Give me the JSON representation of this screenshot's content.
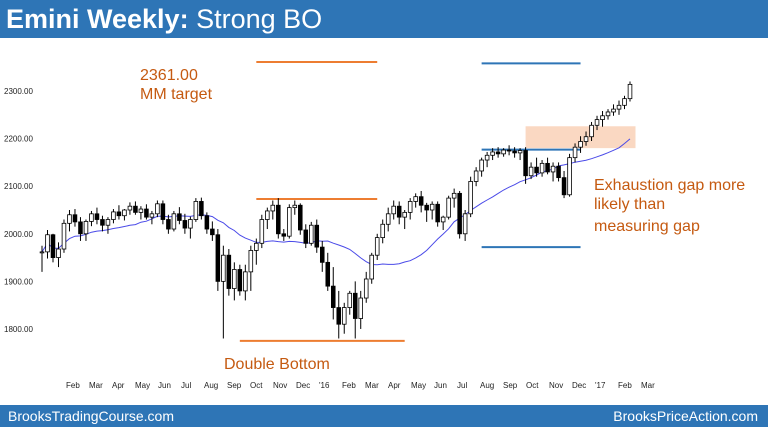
{
  "header": {
    "title_bold": "Emini Weekly:",
    "title_rest": "Strong BO"
  },
  "footer": {
    "left": "BrooksTradingCourse.com",
    "right": "BrooksPriceAction.com"
  },
  "colors": {
    "brand_blue": "#2e75b6",
    "annotation_orange": "#c55a11",
    "level_orange": "#ed7d31",
    "level_blue": "#2e75b6",
    "moving_average": "#4a4ae8",
    "gap_zone": "#f8cbad"
  },
  "chart_data": {
    "type": "candlestick",
    "title": "Emini Weekly: Strong BO",
    "ylim": [
      1760,
      2340
    ],
    "yticks": [
      "1800.00",
      "1900.00",
      "2000.00",
      "2100.00",
      "2200.00",
      "2300.00"
    ],
    "xticks": [
      "Feb",
      "Mar",
      "Apr",
      "May",
      "Jun",
      "Jul",
      "Aug",
      "Sep",
      "Oct",
      "Nov",
      "Dec",
      "'16",
      "Feb",
      "Mar",
      "Apr",
      "May",
      "Jun",
      "Jul",
      "Aug",
      "Sep",
      "Oct",
      "Nov",
      "Dec",
      "'17",
      "Feb",
      "Mar"
    ],
    "annotations": {
      "mm_value": "2361.00",
      "mm_label": "MM target",
      "double_bottom": "Double Bottom",
      "gap_lines": [
        "Exhaustion gap more",
        "likely than",
        "measuring gap"
      ]
    },
    "levels": [
      {
        "name": "mm-target",
        "price": 2361,
        "from": 39,
        "to": 61
      },
      {
        "name": "double-bottom-top",
        "price": 2073,
        "from": 39,
        "to": 61
      },
      {
        "name": "double-bottom-low",
        "price": 1775,
        "from": 36,
        "to": 66
      },
      {
        "name": "blue-upper",
        "price": 2358,
        "from": 80,
        "to": 98
      },
      {
        "name": "blue-middle",
        "price": 2177,
        "from": 80,
        "to": 98
      },
      {
        "name": "blue-lower",
        "price": 1972,
        "from": 80,
        "to": 98
      }
    ],
    "zone": {
      "from": 88,
      "to": 108,
      "low": 2180,
      "high": 2226
    },
    "candles": [
      [
        1962,
        1975,
        1920,
        1962
      ],
      [
        1962,
        2008,
        1948,
        1998
      ],
      [
        1998,
        2000,
        1940,
        1950
      ],
      [
        1950,
        1982,
        1930,
        1968
      ],
      [
        1968,
        2030,
        1960,
        2022
      ],
      [
        2022,
        2050,
        2005,
        2040
      ],
      [
        2040,
        2052,
        2015,
        2025
      ],
      [
        2025,
        2035,
        1985,
        2000
      ],
      [
        2000,
        2030,
        1985,
        2026
      ],
      [
        2026,
        2048,
        2016,
        2042
      ],
      [
        2042,
        2055,
        2020,
        2030
      ],
      [
        2030,
        2038,
        2005,
        2018
      ],
      [
        2018,
        2035,
        2000,
        2030
      ],
      [
        2030,
        2052,
        2022,
        2046
      ],
      [
        2046,
        2060,
        2030,
        2038
      ],
      [
        2038,
        2052,
        2028,
        2050
      ],
      [
        2050,
        2066,
        2040,
        2058
      ],
      [
        2058,
        2068,
        2040,
        2045
      ],
      [
        2045,
        2058,
        2030,
        2052
      ],
      [
        2052,
        2062,
        2030,
        2035
      ],
      [
        2035,
        2048,
        2020,
        2042
      ],
      [
        2042,
        2070,
        2035,
        2063
      ],
      [
        2063,
        2070,
        2020,
        2030
      ],
      [
        2030,
        2040,
        2000,
        2010
      ],
      [
        2010,
        2048,
        2005,
        2042
      ],
      [
        2042,
        2056,
        2020,
        2028
      ],
      [
        2028,
        2042,
        2000,
        2012
      ],
      [
        2012,
        2036,
        1990,
        2030
      ],
      [
        2030,
        2075,
        2025,
        2068
      ],
      [
        2068,
        2076,
        2030,
        2038
      ],
      [
        2038,
        2045,
        2000,
        2010
      ],
      [
        2010,
        2026,
        1985,
        1998
      ],
      [
        1998,
        2010,
        1880,
        1900
      ],
      [
        1900,
        1975,
        1780,
        1955
      ],
      [
        1955,
        1968,
        1870,
        1885
      ],
      [
        1885,
        1940,
        1860,
        1925
      ],
      [
        1925,
        1935,
        1870,
        1880
      ],
      [
        1880,
        1935,
        1860,
        1920
      ],
      [
        1920,
        1975,
        1880,
        1965
      ],
      [
        1965,
        1990,
        1935,
        1980
      ],
      [
        1980,
        2040,
        1970,
        2030
      ],
      [
        2030,
        2055,
        2010,
        2048
      ],
      [
        2048,
        2070,
        2030,
        2060
      ],
      [
        2060,
        2075,
        1990,
        2000
      ],
      [
        2000,
        2010,
        1985,
        1995
      ],
      [
        1995,
        2062,
        1990,
        2055
      ],
      [
        2055,
        2070,
        2040,
        2060
      ],
      [
        2060,
        2064,
        1998,
        2008
      ],
      [
        2008,
        2020,
        1970,
        1980
      ],
      [
        1980,
        2025,
        1975,
        2018
      ],
      [
        2018,
        2030,
        1960,
        1972
      ],
      [
        1972,
        1985,
        1920,
        1940
      ],
      [
        1940,
        1960,
        1880,
        1890
      ],
      [
        1890,
        1930,
        1820,
        1845
      ],
      [
        1845,
        1880,
        1780,
        1810
      ],
      [
        1810,
        1855,
        1790,
        1845
      ],
      [
        1845,
        1880,
        1830,
        1875
      ],
      [
        1875,
        1900,
        1780,
        1822
      ],
      [
        1822,
        1880,
        1800,
        1865
      ],
      [
        1865,
        1920,
        1855,
        1905
      ],
      [
        1905,
        1960,
        1895,
        1955
      ],
      [
        1955,
        2000,
        1945,
        1992
      ],
      [
        1992,
        2030,
        1980,
        2020
      ],
      [
        2020,
        2055,
        2005,
        2042
      ],
      [
        2042,
        2070,
        2030,
        2058
      ],
      [
        2058,
        2068,
        2020,
        2035
      ],
      [
        2035,
        2050,
        2010,
        2045
      ],
      [
        2045,
        2075,
        2030,
        2068
      ],
      [
        2068,
        2085,
        2055,
        2078
      ],
      [
        2078,
        2090,
        2045,
        2060
      ],
      [
        2060,
        2065,
        2025,
        2050
      ],
      [
        2050,
        2068,
        2030,
        2062
      ],
      [
        2062,
        2068,
        2015,
        2025
      ],
      [
        2025,
        2038,
        2008,
        2035
      ],
      [
        2035,
        2080,
        2030,
        2075
      ],
      [
        2075,
        2095,
        2055,
        2085
      ],
      [
        2085,
        2090,
        1990,
        2000
      ],
      [
        2000,
        2050,
        1985,
        2042
      ],
      [
        2042,
        2120,
        2035,
        2110
      ],
      [
        2110,
        2140,
        2100,
        2132
      ],
      [
        2132,
        2160,
        2120,
        2155
      ],
      [
        2155,
        2172,
        2140,
        2165
      ],
      [
        2165,
        2180,
        2155,
        2172
      ],
      [
        2172,
        2182,
        2160,
        2168
      ],
      [
        2168,
        2180,
        2162,
        2176
      ],
      [
        2176,
        2186,
        2165,
        2174
      ],
      [
        2174,
        2182,
        2160,
        2170
      ],
      [
        2170,
        2180,
        2155,
        2175
      ],
      [
        2175,
        2182,
        2105,
        2122
      ],
      [
        2122,
        2150,
        2115,
        2140
      ],
      [
        2140,
        2160,
        2120,
        2128
      ],
      [
        2128,
        2155,
        2120,
        2148
      ],
      [
        2148,
        2160,
        2125,
        2130
      ],
      [
        2130,
        2150,
        2110,
        2142
      ],
      [
        2142,
        2150,
        2110,
        2118
      ],
      [
        2118,
        2132,
        2075,
        2082
      ],
      [
        2082,
        2168,
        2078,
        2160
      ],
      [
        2160,
        2190,
        2150,
        2182
      ],
      [
        2182,
        2205,
        2170,
        2194
      ],
      [
        2194,
        2215,
        2185,
        2204
      ],
      [
        2204,
        2235,
        2195,
        2228
      ],
      [
        2228,
        2248,
        2218,
        2240
      ],
      [
        2240,
        2258,
        2225,
        2248
      ],
      [
        2248,
        2262,
        2240,
        2256
      ],
      [
        2256,
        2272,
        2248,
        2262
      ],
      [
        2262,
        2280,
        2250,
        2270
      ],
      [
        2270,
        2290,
        2262,
        2284
      ],
      [
        2284,
        2320,
        2278,
        2314
      ]
    ],
    "ma_period": 18
  }
}
